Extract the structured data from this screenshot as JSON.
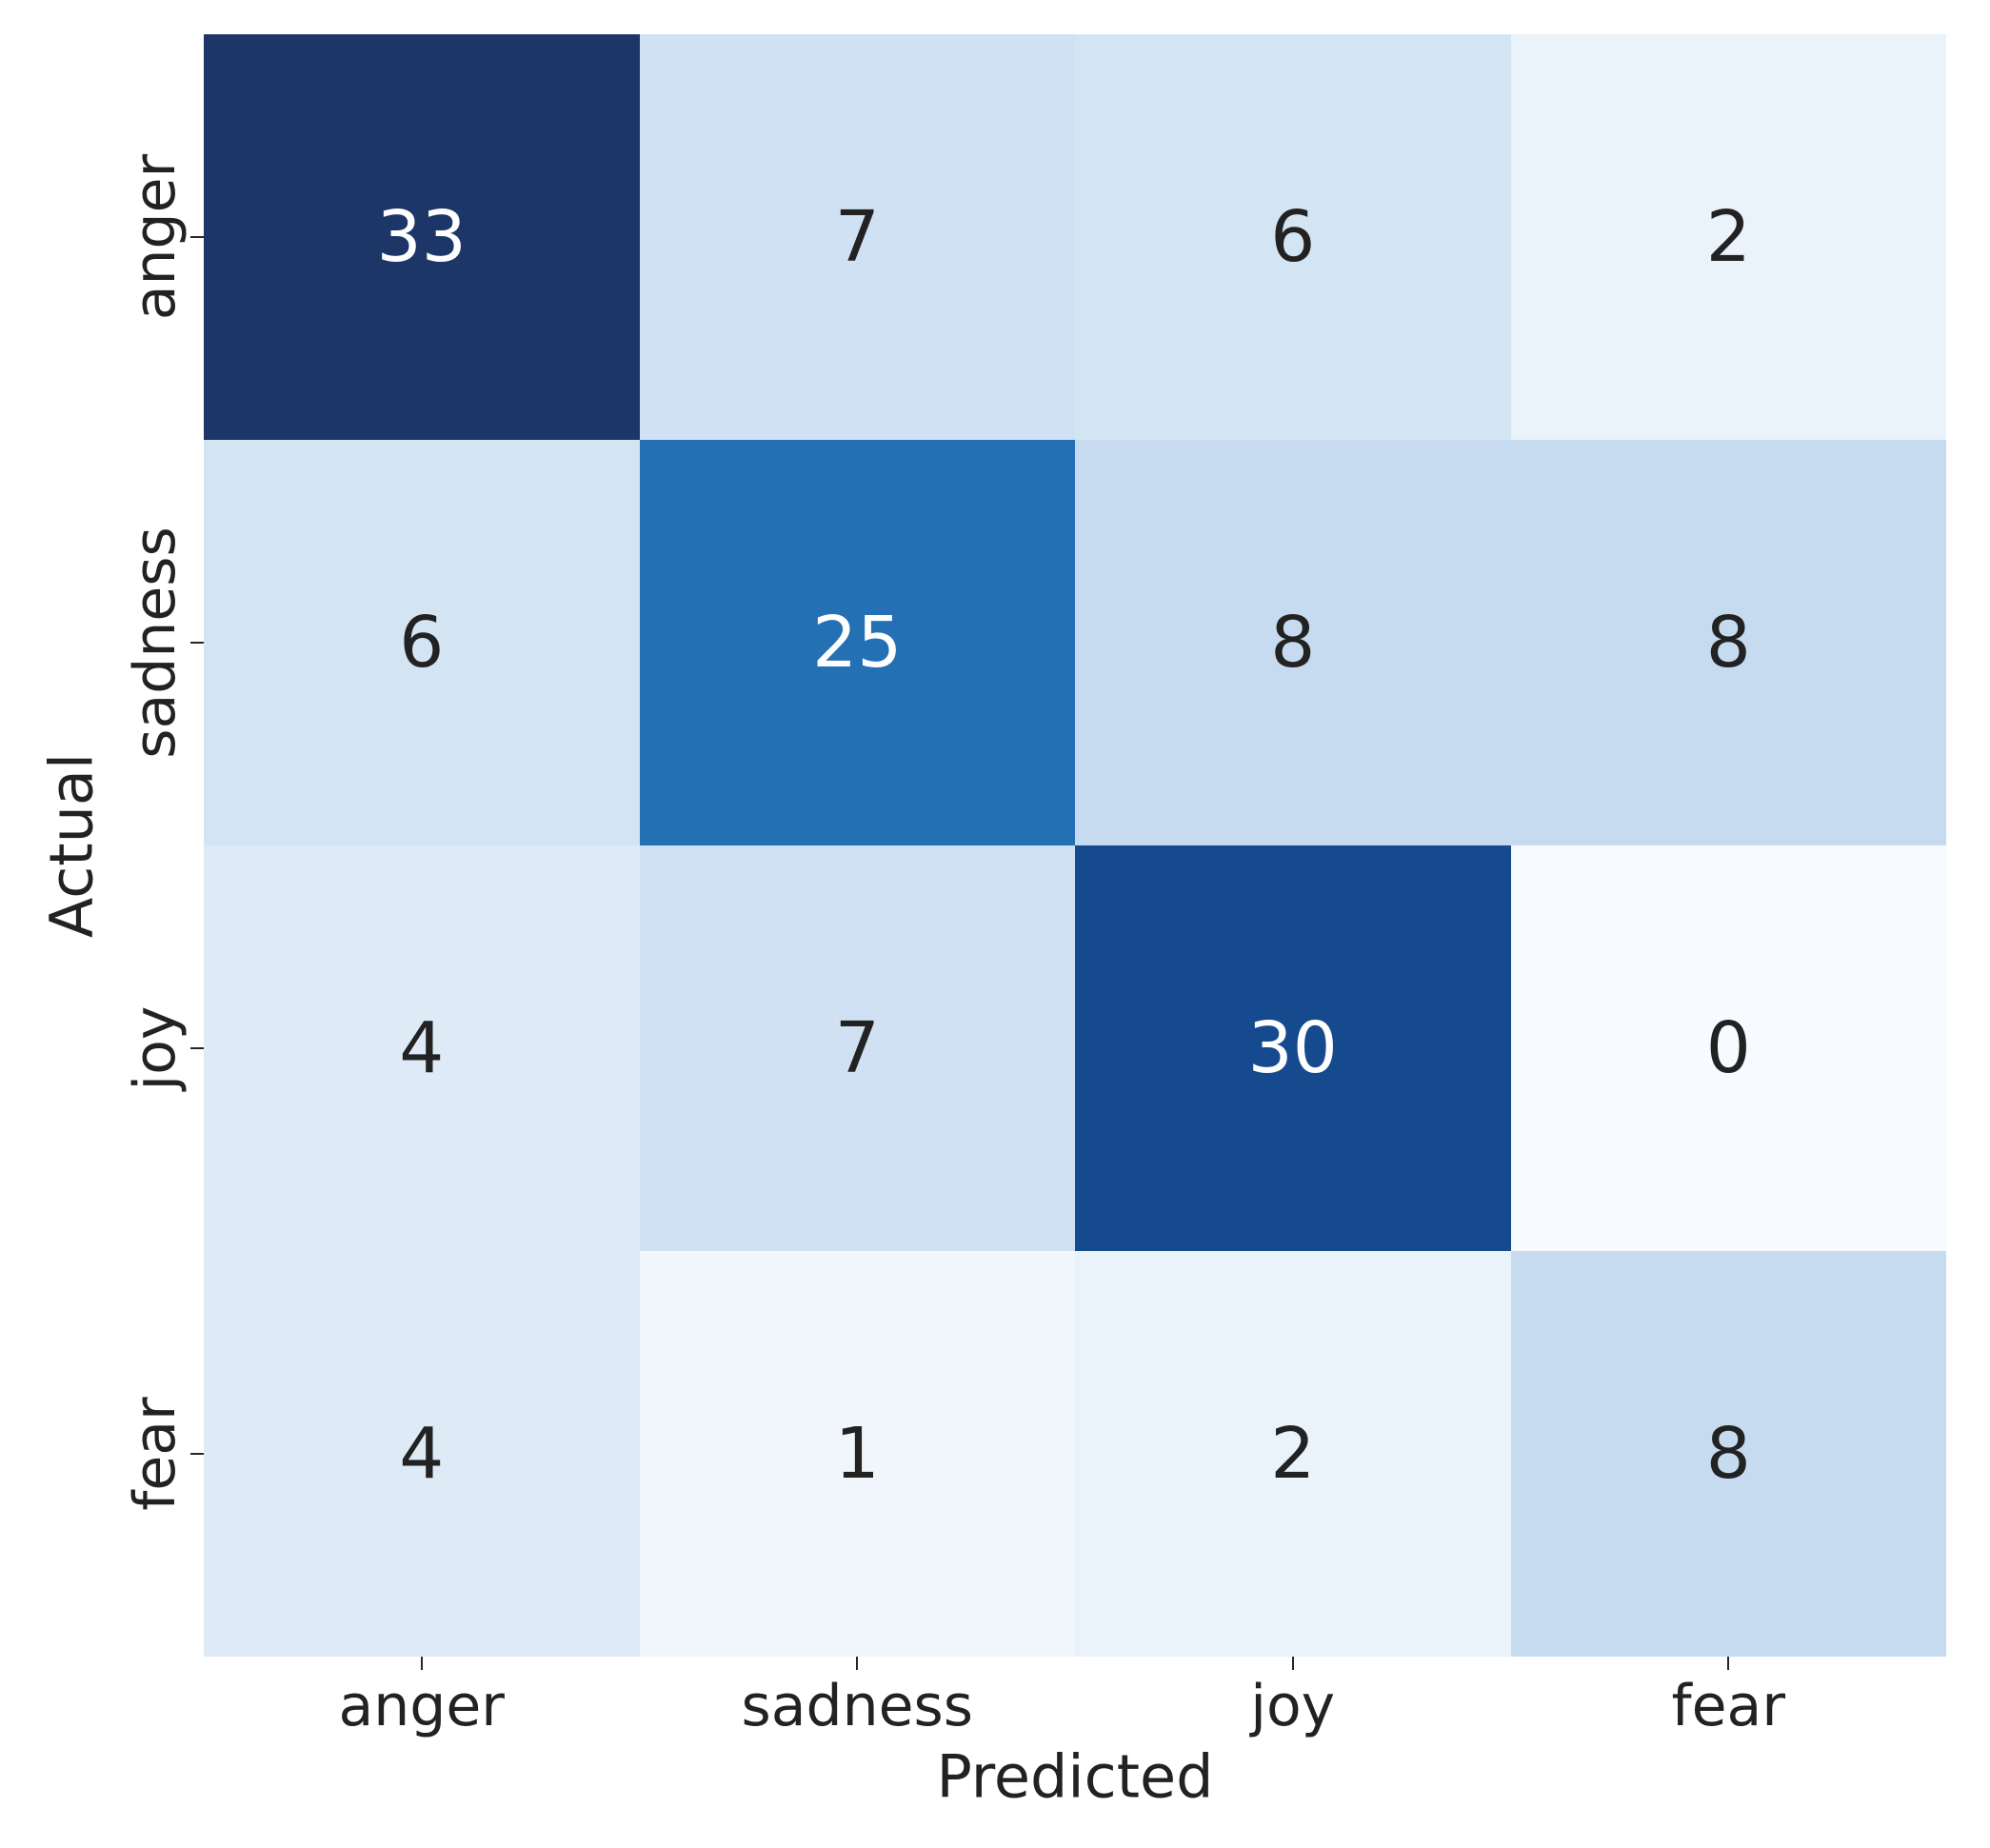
{
  "chart_data": {
    "type": "heatmap",
    "title": "",
    "xlabel": "Predicted",
    "ylabel": "Actual",
    "x_categories": [
      "anger",
      "sadness",
      "joy",
      "fear"
    ],
    "y_categories": [
      "anger",
      "sadness",
      "joy",
      "fear"
    ],
    "matrix": [
      [
        33,
        7,
        6,
        2
      ],
      [
        6,
        25,
        8,
        8
      ],
      [
        4,
        7,
        30,
        0
      ],
      [
        4,
        1,
        2,
        8
      ]
    ],
    "vmin": 0,
    "vmax": 33,
    "colormap": "Blues",
    "cell_colors": [
      [
        "#1c3668",
        "#cfe1f2",
        "#d3e4f3",
        "#eaf2fa"
      ],
      [
        "#d3e4f3",
        "#2470b4",
        "#c6dbef",
        "#c6dbef"
      ],
      [
        "#deebf7",
        "#cfe1f2",
        "#164a8e",
        "#f7fbff"
      ],
      [
        "#deebf7",
        "#f1f6fc",
        "#eaf2fa",
        "#c6dbef"
      ]
    ],
    "cell_text_colors": [
      [
        "#ffffff",
        "#222222",
        "#222222",
        "#222222"
      ],
      [
        "#222222",
        "#ffffff",
        "#222222",
        "#222222"
      ],
      [
        "#222222",
        "#222222",
        "#ffffff",
        "#222222"
      ],
      [
        "#222222",
        "#222222",
        "#222222",
        "#222222"
      ]
    ],
    "grid": false,
    "legend": "none",
    "tick_color": "#262626"
  }
}
